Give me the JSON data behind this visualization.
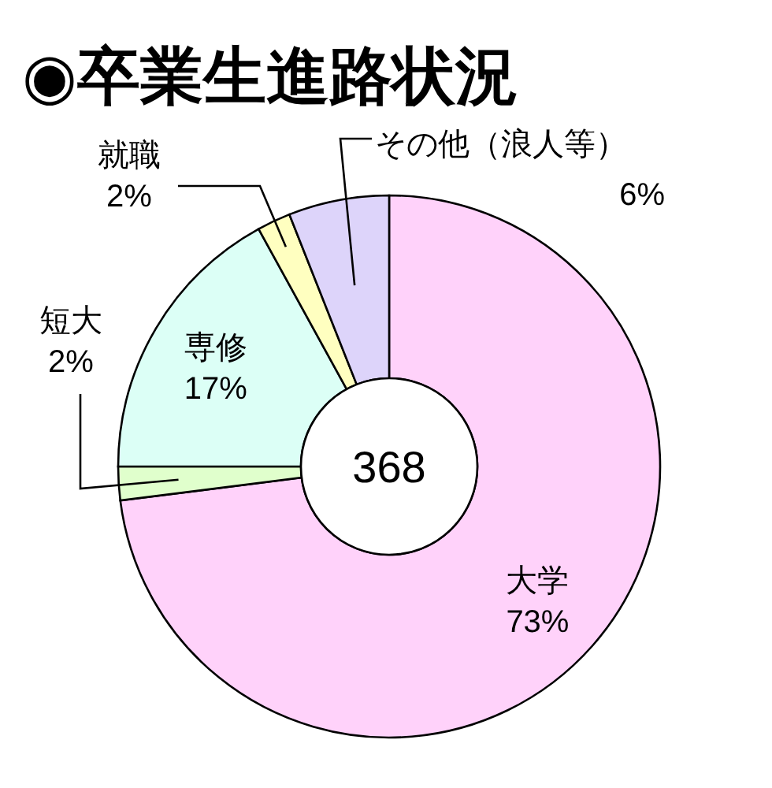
{
  "chart_data": {
    "type": "donut",
    "title": "◉卒業生進路状況",
    "categories": [
      "大学",
      "短大",
      "専修",
      "就職",
      "その他（浪人等）"
    ],
    "values": [
      73,
      2,
      17,
      2,
      6
    ],
    "value_labels": [
      "73%",
      "2%",
      "17%",
      "2%",
      "6%"
    ],
    "colors": [
      "#ffd2fa",
      "#e0ffcc",
      "#dcfff6",
      "#ffffc0",
      "#ddd4fa"
    ],
    "annotations": [
      "368"
    ],
    "legend": false
  }
}
